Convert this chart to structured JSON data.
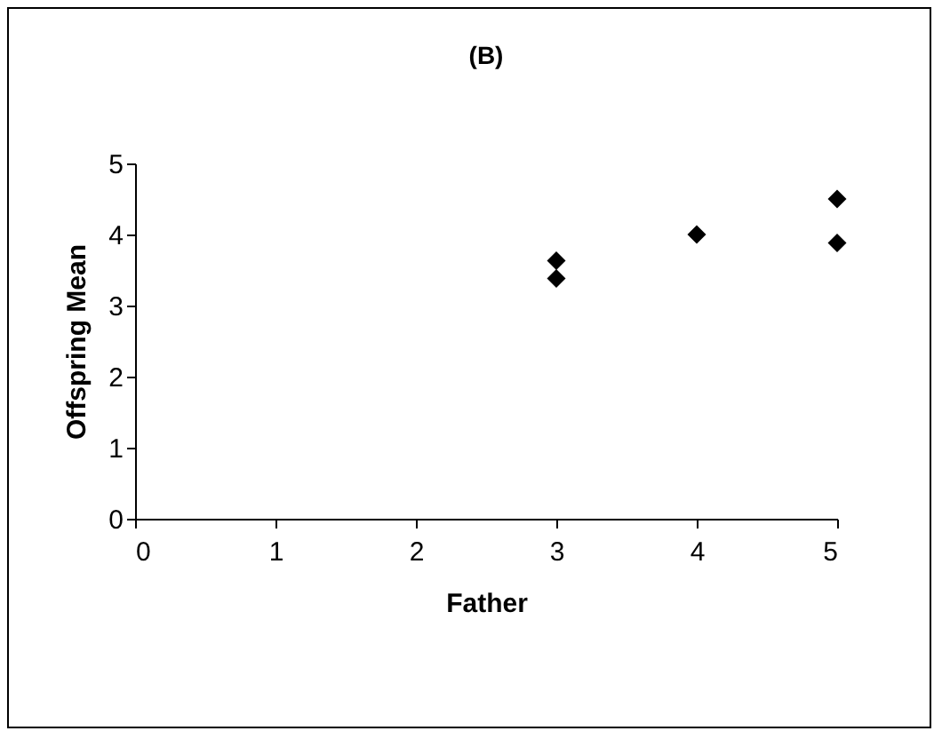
{
  "chart_data": {
    "type": "scatter",
    "title": "(B)",
    "xlabel": "Father",
    "ylabel": "Offspring Mean",
    "series": [
      {
        "color": "#000000",
        "x": [
          3,
          3,
          4,
          5,
          5
        ],
        "values": [
          3.63,
          3.38,
          4.0,
          4.5,
          3.88
        ]
      }
    ],
    "xlim": [
      0,
      5
    ],
    "xticks": [
      0,
      1,
      2,
      3,
      4,
      5
    ],
    "ylim": [
      0,
      5
    ],
    "yticks": [
      0,
      1,
      2,
      3,
      4,
      5
    ],
    "grid": false,
    "legend": false,
    "marker": "diamond"
  }
}
